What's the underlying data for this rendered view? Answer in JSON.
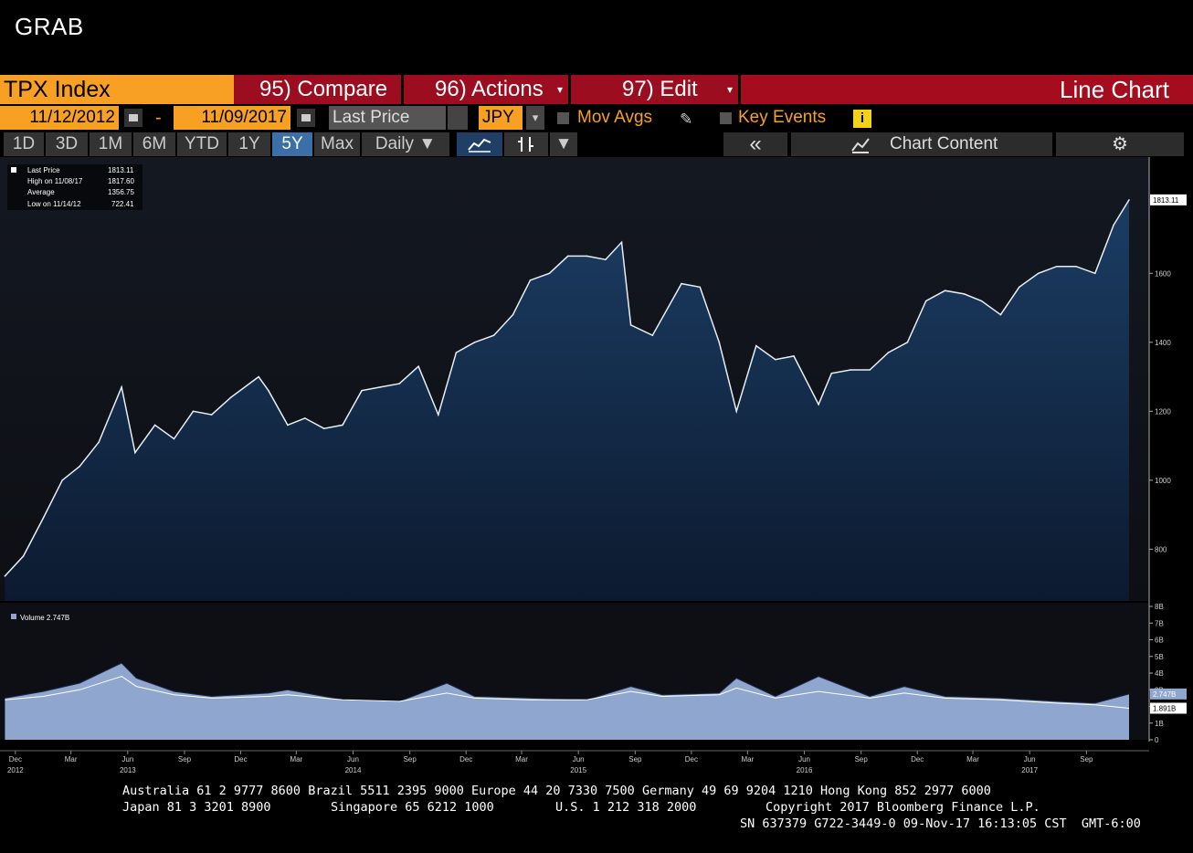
{
  "app": {
    "title": "GRAB"
  },
  "toolbar": {
    "ticker": "TPX Index",
    "compare": "95) Compare",
    "actions": "96) Actions",
    "edit": "97) Edit",
    "chart_type": "Line Chart",
    "dropdown_arrow": "▾"
  },
  "settings": {
    "start_date": "11/12/2012",
    "date_separator": "-",
    "end_date": "11/09/2017",
    "field": "Last Price",
    "currency": "JPY",
    "mov_avgs": "Mov Avgs",
    "key_events": "Key Events",
    "info_label": "i"
  },
  "ranges": {
    "items": [
      "1D",
      "3D",
      "1M",
      "6M",
      "YTD",
      "1Y",
      "5Y",
      "Max"
    ],
    "selected": "5Y",
    "frequency": "Daily ▼",
    "collapse": "«",
    "chart_content": "Chart Content",
    "dropdown": "▼"
  },
  "legend": {
    "last_price_label": "Last Price",
    "last_price_value": "1813.11",
    "high_label": "High on 11/08/17",
    "high_value": "1817.60",
    "average_label": "Average",
    "average_value": "1356.75",
    "low_label": "Low on 11/14/12",
    "low_value": "722.41"
  },
  "volume_legend": "Volume 2.747B",
  "tags": {
    "price": "1813.11",
    "vol1": "2.747B",
    "vol2": "1.891B"
  },
  "chart_data": [
    {
      "type": "area",
      "title": "",
      "xlabel": "",
      "ylabel": "",
      "ylim": [
        650,
        1900
      ],
      "xlim": [
        "2012-11-12",
        "2017-11-09"
      ],
      "yticks": [
        800,
        1000,
        1200,
        1400,
        1600
      ],
      "ytick_labels": [
        "800",
        "1000",
        "1200",
        "1400",
        "1600"
      ],
      "x": [
        "2012-11-14",
        "2012-12-14",
        "2013-01-15",
        "2013-02-15",
        "2013-03-15",
        "2013-04-15",
        "2013-05-22",
        "2013-06-13",
        "2013-07-15",
        "2013-08-15",
        "2013-09-15",
        "2013-10-15",
        "2013-11-15",
        "2013-12-30",
        "2014-01-15",
        "2014-02-15",
        "2014-03-15",
        "2014-04-15",
        "2014-05-15",
        "2014-06-15",
        "2014-07-15",
        "2014-08-15",
        "2014-09-15",
        "2014-10-17",
        "2014-11-15",
        "2014-12-15",
        "2015-01-15",
        "2015-02-15",
        "2015-03-15",
        "2015-04-15",
        "2015-05-15",
        "2015-06-15",
        "2015-07-15",
        "2015-08-10",
        "2015-08-25",
        "2015-09-29",
        "2015-11-15",
        "2015-12-15",
        "2016-01-15",
        "2016-02-12",
        "2016-03-15",
        "2016-04-15",
        "2016-05-15",
        "2016-06-24",
        "2016-07-15",
        "2016-08-15",
        "2016-09-15",
        "2016-10-15",
        "2016-11-15",
        "2016-12-15",
        "2017-01-15",
        "2017-02-15",
        "2017-03-15",
        "2017-04-15",
        "2017-05-15",
        "2017-06-15",
        "2017-07-15",
        "2017-08-15",
        "2017-09-15",
        "2017-10-15",
        "2017-11-09"
      ],
      "series": [
        {
          "name": "Last Price",
          "values": [
            722,
            780,
            890,
            1000,
            1040,
            1110,
            1270,
            1080,
            1160,
            1120,
            1200,
            1190,
            1240,
            1300,
            1260,
            1160,
            1180,
            1150,
            1160,
            1260,
            1270,
            1280,
            1330,
            1190,
            1370,
            1400,
            1420,
            1480,
            1580,
            1600,
            1650,
            1650,
            1640,
            1690,
            1450,
            1420,
            1570,
            1560,
            1400,
            1200,
            1390,
            1350,
            1360,
            1220,
            1310,
            1320,
            1320,
            1370,
            1400,
            1520,
            1550,
            1540,
            1520,
            1480,
            1560,
            1600,
            1620,
            1620,
            1600,
            1740,
            1813
          ]
        }
      ],
      "legend_position": "top-left",
      "grid": false
    },
    {
      "type": "area",
      "title": "",
      "ylim": [
        0,
        8
      ],
      "yticks": [
        0,
        1,
        2,
        3,
        4,
        5,
        6,
        7,
        8
      ],
      "ytick_labels": [
        "0",
        "1B",
        "2B",
        "3B",
        "4B",
        "5B",
        "6B",
        "7B",
        "8B"
      ],
      "xtick_labels": [
        [
          "Dec",
          "2012"
        ],
        [
          "Mar",
          ""
        ],
        [
          "Jun",
          "2013"
        ],
        [
          "Sep",
          ""
        ],
        [
          "Dec",
          ""
        ],
        [
          "Mar",
          ""
        ],
        [
          "Jun",
          "2014"
        ],
        [
          "Sep",
          ""
        ],
        [
          "Dec",
          ""
        ],
        [
          "Mar",
          ""
        ],
        [
          "Jun",
          "2015"
        ],
        [
          "Sep",
          ""
        ],
        [
          "Dec",
          ""
        ],
        [
          "Mar",
          ""
        ],
        [
          "Jun",
          "2016"
        ],
        [
          "Sep",
          ""
        ],
        [
          "Dec",
          ""
        ],
        [
          "Mar",
          ""
        ],
        [
          "Jun",
          "2017"
        ],
        [
          "Sep",
          ""
        ]
      ],
      "x": [
        "2012-11-14",
        "2013-01-15",
        "2013-03-15",
        "2013-05-22",
        "2013-06-15",
        "2013-08-15",
        "2013-10-15",
        "2014-01-15",
        "2014-02-15",
        "2014-05-15",
        "2014-08-15",
        "2014-10-31",
        "2014-12-15",
        "2015-03-15",
        "2015-06-15",
        "2015-08-25",
        "2015-10-15",
        "2016-01-15",
        "2016-02-12",
        "2016-04-15",
        "2016-06-24",
        "2016-09-15",
        "2016-11-10",
        "2017-01-15",
        "2017-04-15",
        "2017-07-15",
        "2017-09-15",
        "2017-11-09"
      ],
      "series": [
        {
          "name": "Volume",
          "values": [
            2.5,
            2.9,
            3.4,
            4.6,
            3.7,
            2.9,
            2.6,
            2.8,
            3.0,
            2.4,
            2.3,
            3.4,
            2.6,
            2.5,
            2.4,
            3.2,
            2.7,
            2.8,
            3.7,
            2.6,
            3.8,
            2.6,
            3.2,
            2.6,
            2.5,
            2.3,
            2.2,
            2.747
          ]
        },
        {
          "name": "",
          "values": [
            2.4,
            2.6,
            3.0,
            3.8,
            3.2,
            2.7,
            2.5,
            2.6,
            2.7,
            2.4,
            2.3,
            2.8,
            2.5,
            2.4,
            2.4,
            2.9,
            2.6,
            2.7,
            3.1,
            2.5,
            2.9,
            2.5,
            2.8,
            2.5,
            2.4,
            2.2,
            2.1,
            1.891
          ]
        }
      ]
    }
  ],
  "footer": {
    "line1": "Australia 61 2 9777 8600 Brazil 5511 2395 9000 Europe 44 20 7330 7500 Germany 49 69 9204 1210 Hong Kong 852 2977 6000",
    "line2a": "Japan 81 3 3201 8900",
    "line2b": "Singapore 65 6212 1000",
    "line2c": "U.S. 1 212 318 2000",
    "line2d": "Copyright 2017 Bloomberg Finance L.P.",
    "line3": "SN 637379 G722-3449-0 09-Nov-17 16:13:05 CST  GMT-6:00"
  },
  "colors": {
    "orange": "#f7a023",
    "red": "#9c0d1f",
    "area_blue": "#17304f",
    "volume_fill": "#8fa6cf",
    "selected_range": "#3b6fa8"
  }
}
